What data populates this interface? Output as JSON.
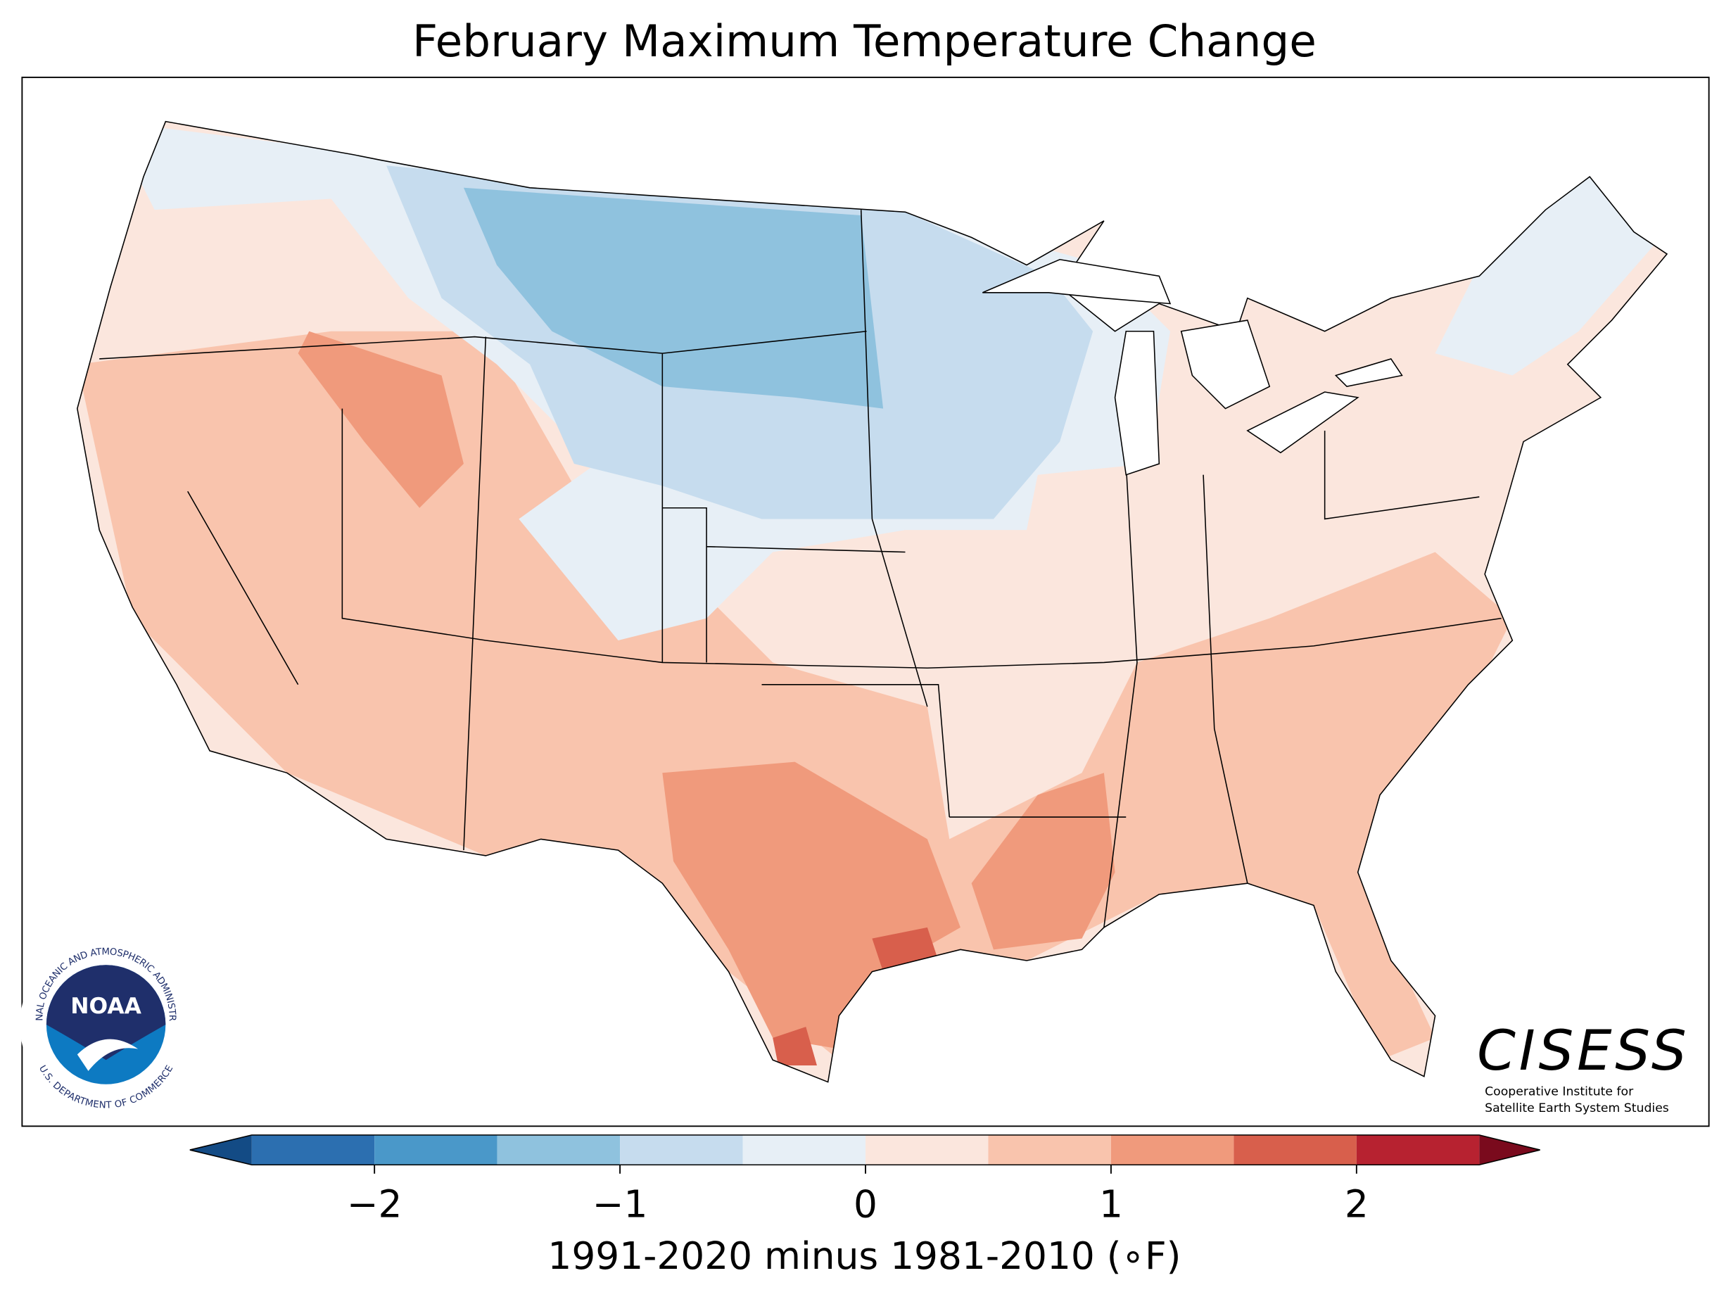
{
  "title": "February Maximum Temperature Change",
  "colorbar": {
    "label": "1991-2020 minus 1981-2010 (∘F)",
    "bounds": [
      -2.5,
      -2,
      -1.5,
      -1,
      -0.5,
      0,
      0.5,
      1,
      1.5,
      2,
      2.5
    ],
    "colors": [
      "#2c6fb0",
      "#4a98c9",
      "#8fc2de",
      "#c6dcee",
      "#e7eff6",
      "#fbe6dd",
      "#f9c4ad",
      "#f09a7c",
      "#d85f4c",
      "#b72230"
    ],
    "extend_colors": [
      "#134b85",
      "#7a0a1d"
    ],
    "ticks": [
      {
        "value": -2,
        "label": "−2"
      },
      {
        "value": -1,
        "label": "−1"
      },
      0,
      1,
      2
    ]
  },
  "logos": {
    "noaa": {
      "name": "NOAA",
      "ring_top": "NATIONAL OCEANIC AND ATMOSPHERIC ADMINISTRATION",
      "ring_bottom": "U.S. DEPARTMENT OF COMMERCE"
    },
    "cisess": {
      "name": "CISESS",
      "line1": "Cooperative Institute for",
      "line2": "Satellite Earth System Studies"
    }
  }
}
